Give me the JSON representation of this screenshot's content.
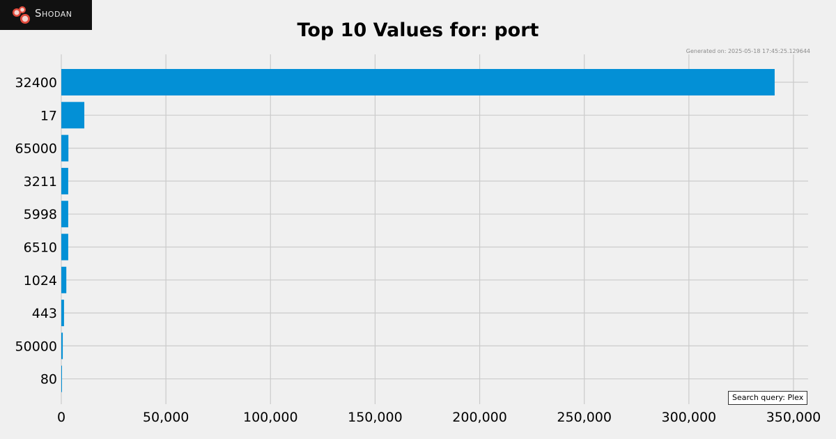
{
  "logo": {
    "text": "Shodan",
    "icon": "shodan-logo-icon"
  },
  "generated_text": "Generated on: 2025-05-18 17:45:25.129644",
  "query_text": "Search query: Plex",
  "colors": {
    "bar": "#0390d6",
    "grid": "#cbcbcb",
    "background": "#f0f0f0",
    "logo_bg": "#111111"
  },
  "chart_data": {
    "type": "bar",
    "orientation": "horizontal",
    "title": "Top 10 Values for: port",
    "xlabel": "",
    "ylabel": "",
    "categories": [
      "32400",
      "17",
      "65000",
      "3211",
      "5998",
      "6510",
      "1024",
      "443",
      "50000",
      "80"
    ],
    "values": [
      341000,
      11000,
      3400,
      3300,
      3300,
      3300,
      2400,
      1300,
      700,
      300
    ],
    "xlim": [
      0,
      357000
    ],
    "xticks": [
      0,
      50000,
      100000,
      150000,
      200000,
      250000,
      300000,
      350000
    ],
    "xtick_labels": [
      "0",
      "50,000",
      "100,000",
      "150,000",
      "200,000",
      "250,000",
      "300,000",
      "350,000"
    ],
    "grid": true,
    "legend": "none"
  }
}
